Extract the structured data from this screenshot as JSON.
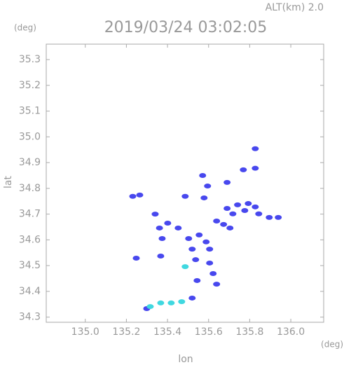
{
  "chart_data": {
    "type": "scatter",
    "title": "2019/03/24 03:02:05",
    "subtitle": "ALT(km) 2.0",
    "x_label": "lon",
    "y_label": "lat",
    "x_unit": "(deg)",
    "y_unit": "(deg)",
    "xlim": [
      134.81,
      136.16
    ],
    "ylim": [
      34.28,
      35.36
    ],
    "xticks": [
      {
        "value": 135,
        "label": "135.0"
      },
      135.2,
      135.4,
      135.6,
      135.8,
      {
        "value": 136,
        "label": "136.0"
      }
    ],
    "yticks": [
      34.3,
      34.4,
      34.5,
      34.6,
      34.7,
      34.8,
      34.9,
      {
        "value": 35,
        "label": "35.0"
      },
      35.1,
      35.2,
      35.3
    ],
    "series": [
      {
        "color": "#4848ee",
        "x": [
          135.827,
          135.769,
          135.827,
          135.571,
          135.69,
          135.595,
          135.231,
          135.265,
          135.486,
          135.578,
          135.69,
          135.741,
          135.793,
          135.827,
          135.718,
          135.844,
          135.895,
          135.939,
          135.776,
          135.673,
          135.704,
          135.639,
          135.401,
          135.361,
          135.34,
          135.452,
          135.503,
          135.554,
          135.588,
          135.605,
          135.52,
          135.374,
          135.537,
          135.605,
          135.367,
          135.248,
          135.622,
          135.639,
          135.544,
          135.52,
          135.299
        ],
        "values": [
          34.954,
          34.872,
          34.878,
          34.85,
          34.823,
          34.809,
          34.769,
          34.774,
          34.769,
          34.763,
          34.722,
          34.736,
          34.741,
          34.728,
          34.701,
          34.701,
          34.687,
          34.687,
          34.714,
          34.66,
          34.646,
          34.673,
          34.665,
          34.646,
          34.7,
          34.646,
          34.605,
          34.619,
          34.592,
          34.564,
          34.564,
          34.605,
          34.523,
          34.51,
          34.537,
          34.529,
          34.469,
          34.428,
          34.442,
          34.374,
          34.333
        ]
      },
      {
        "color": "#40d8e0",
        "x": [
          135.486,
          135.367,
          135.418,
          135.469,
          135.316
        ],
        "values": [
          34.496,
          34.355,
          34.355,
          34.36,
          34.341
        ]
      }
    ]
  }
}
